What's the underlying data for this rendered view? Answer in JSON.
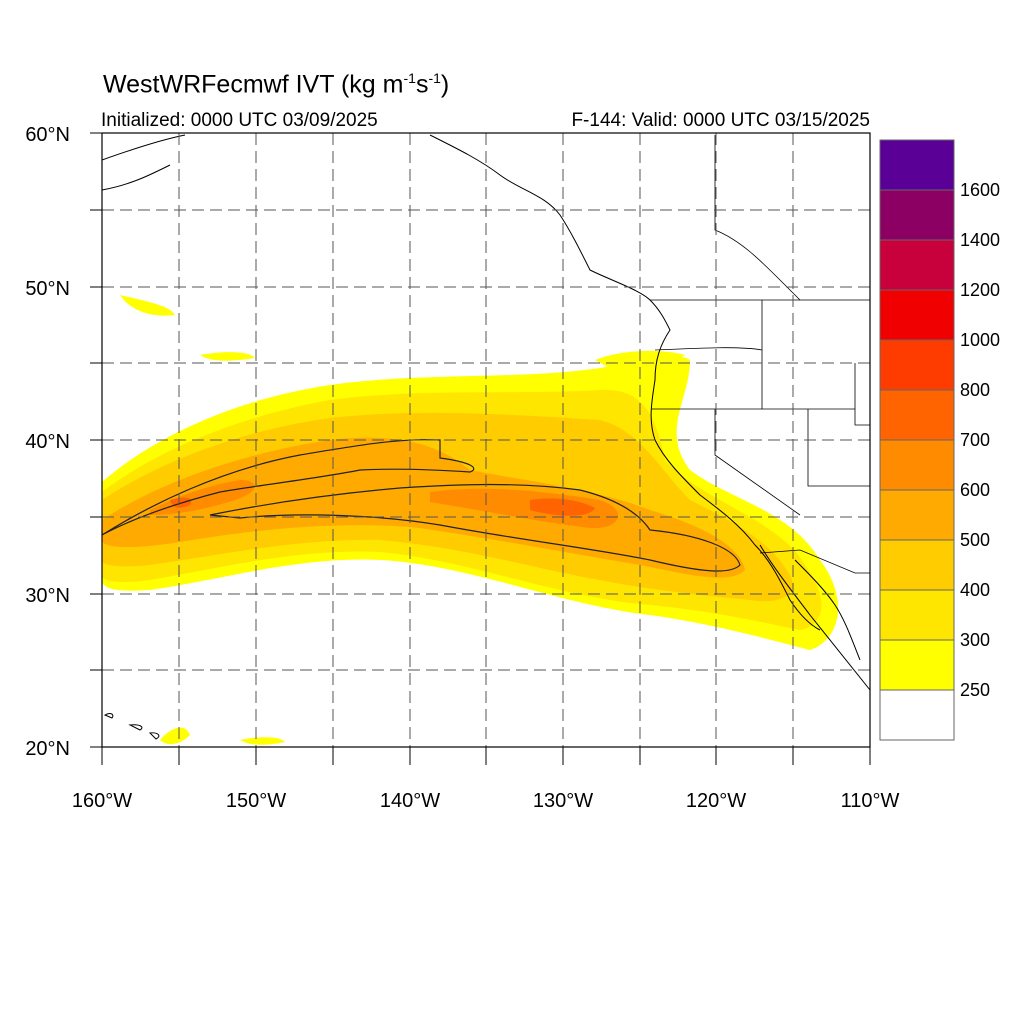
{
  "header": {
    "title_main": "WestWRFecmwf IVT (kg m",
    "title_exp1": "-1",
    "title_mid": "s",
    "title_exp2": "-1",
    "title_end": ")",
    "initialized": "Initialized: 0000 UTC 03/09/2025",
    "valid": "F-144: Valid: 0000 UTC 03/15/2025"
  },
  "map": {
    "lon_range": [
      -160,
      -110
    ],
    "lat_range": [
      20,
      60
    ],
    "lon_labels": [
      "160°W",
      "150°W",
      "140°W",
      "130°W",
      "120°W",
      "110°W"
    ],
    "lat_labels": [
      "60°N",
      "50°N",
      "40°N",
      "30°N",
      "20°N"
    ]
  },
  "colorbar": {
    "levels": [
      {
        "label": "250",
        "color": "#ffff00"
      },
      {
        "label": "300",
        "color": "#ffe600"
      },
      {
        "label": "400",
        "color": "#ffcc00"
      },
      {
        "label": "500",
        "color": "#ffaa00"
      },
      {
        "label": "600",
        "color": "#ff8c00"
      },
      {
        "label": "700",
        "color": "#ff6400"
      },
      {
        "label": "800",
        "color": "#ff3c00"
      },
      {
        "label": "1000",
        "color": "#f00000"
      },
      {
        "label": "1200",
        "color": "#c8003c"
      },
      {
        "label": "1400",
        "color": "#8c0064"
      },
      {
        "label": "1600",
        "color": "#5a0096"
      }
    ]
  }
}
